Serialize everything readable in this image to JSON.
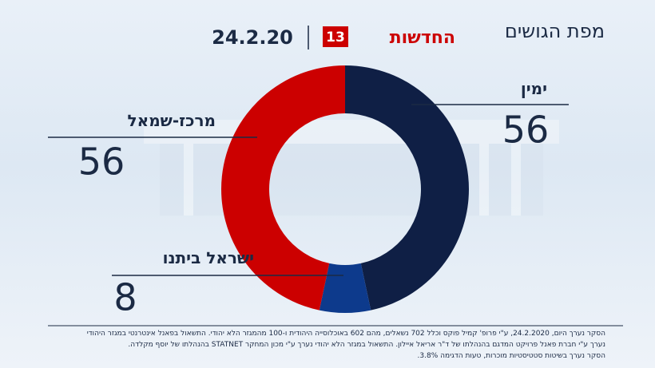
{
  "chart_data": {
    "type": "donut",
    "title": "מפת הגושים",
    "brand": "החדשות",
    "brand_number": "13",
    "date": "24.2.20",
    "categories": [
      "ימין",
      "ישראל ביתנו",
      "מרכז-שמאל"
    ],
    "values": [
      56,
      8,
      56
    ],
    "colors": [
      "#0f1f45",
      "#0d3a8c",
      "#cc0000"
    ],
    "notes": [
      "הסקר נערך היום, 24.2.2020, ע\"י פרופ' קמיל פוקס וכלל 702 נשאלים, מהם 602 באוכלוסייה היהודית ו-100 מהמגזר הלא יהודי. התשאול בפאנל אינטרנטי במגזר היהודי",
      "נערך ע\"י חברת פאנל פרויקט המדגם בהנהלתו של ד\"ר אריאל איילון. התשאול במגזר הלא יהודי נערך ע\"י מכון המחקר STATNET בהנהלתו של יוסף מקלדה.",
      "הסקר נערך בשיטות סטטיסטיות מוכרות, טעות הדגימה 3.8%."
    ]
  }
}
